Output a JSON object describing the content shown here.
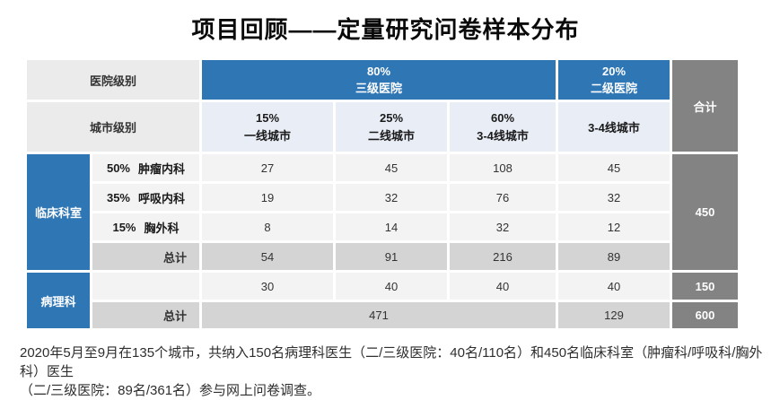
{
  "title": "项目回顾——定量研究问卷样本分布",
  "colors": {
    "accent_blue": "#2F76B5",
    "total_dark_gray": "#838383",
    "subtotal_gray": "#D4D4D4",
    "data_cell_gray": "#F3F3F3",
    "header_label_gray": "#EBEBEB",
    "city_header_blue_tint": "#E9EDF6"
  },
  "table": {
    "hospital_level_label": "医院级别",
    "city_level_label": "城市级别",
    "total_col_label": "合计",
    "hospital_tiers": [
      {
        "pct": "80%",
        "name": "三级医院"
      },
      {
        "pct": "20%",
        "name": "二级医院"
      }
    ],
    "city_tiers": [
      {
        "pct": "15%",
        "name": "一线城市"
      },
      {
        "pct": "25%",
        "name": "二线城市"
      },
      {
        "pct": "60%",
        "name": "3-4线城市"
      },
      {
        "pct": "",
        "name": "3-4线城市"
      }
    ],
    "clinical": {
      "group_label": "临床科室",
      "rows": [
        {
          "pct": "50%",
          "name": "肿瘤内科",
          "values": [
            "27",
            "45",
            "108",
            "45"
          ]
        },
        {
          "pct": "35%",
          "name": "呼吸内科",
          "values": [
            "19",
            "32",
            "76",
            "32"
          ]
        },
        {
          "pct": "15%",
          "name": "胸外科",
          "values": [
            "8",
            "14",
            "32",
            "12"
          ]
        }
      ],
      "subtotal_label": "总计",
      "subtotal_values": [
        "54",
        "91",
        "216",
        "89"
      ],
      "total": "450"
    },
    "pathology": {
      "group_label": "病理科",
      "values": [
        "30",
        "40",
        "40",
        "40"
      ],
      "total": "150"
    },
    "grand_total": {
      "label": "总计",
      "tier3_value": "471",
      "tier2_value": "129",
      "total": "600"
    }
  },
  "footer": {
    "lines": [
      "2020年5月至9月在135个城市，共纳入150名病理科医生（二/三级医院：40名/110名）和450名临床科室（肿瘤科/呼吸科/胸外科）医生",
      "（二/三级医院：89名/361名）参与网上问卷调查。"
    ]
  }
}
